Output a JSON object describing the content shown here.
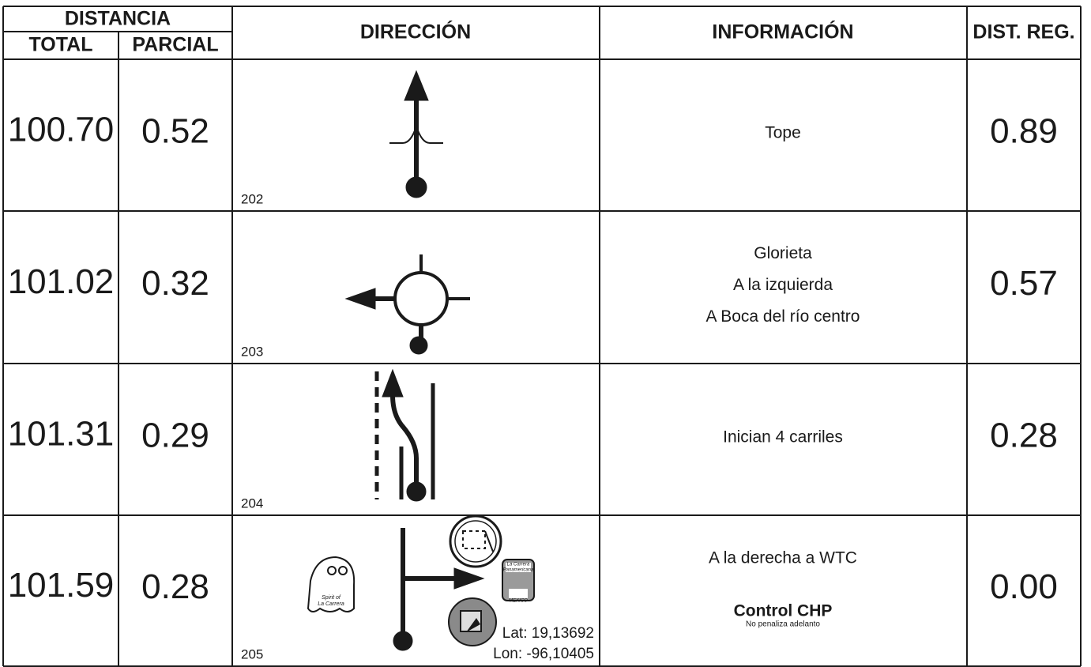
{
  "header": {
    "distancia": "DISTANCIA",
    "total": "TOTAL",
    "parcial": "PARCIAL",
    "direccion": "DIRECCIÓN",
    "informacion": "INFORMACIÓN",
    "dist_reg": "DIST. REG."
  },
  "rows": [
    {
      "total": "100.70",
      "parcial": "0.52",
      "number": "202",
      "info": [
        "Tope"
      ],
      "dist_reg": "0.89"
    },
    {
      "total": "101.02",
      "parcial": "0.32",
      "number": "203",
      "info": [
        "Glorieta",
        "A la izquierda",
        "A Boca del río centro"
      ],
      "dist_reg": "0.57"
    },
    {
      "total": "101.31",
      "parcial": "0.29",
      "number": "204",
      "info": [
        "Inician 4 carriles"
      ],
      "dist_reg": "0.28"
    },
    {
      "total": "101.59",
      "parcial": "0.28",
      "number": "205",
      "info": [
        "A la derecha a WTC"
      ],
      "control": "Control CHP",
      "control_note": "No penaliza adelanto",
      "lat": "Lat: 19,13692",
      "lon": "Lon: -96,10405",
      "logo_spirit": [
        "Spirit of",
        "La Carrera"
      ],
      "logo_carrera": [
        "La Carrera",
        "Panamericana",
        "MEXICO"
      ],
      "dist_reg": "0.00"
    }
  ]
}
